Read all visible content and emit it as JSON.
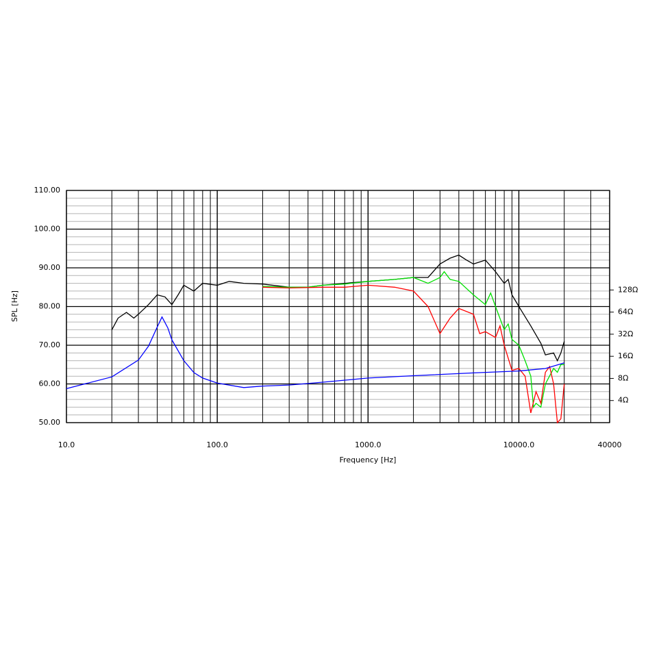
{
  "chart_data": {
    "type": "line",
    "xlabel": "Frequency [Hz]",
    "ylabel": "SPL [Hz]",
    "xlog": true,
    "xlim": [
      10,
      40000
    ],
    "xticks": [
      {
        "value": 10,
        "label": "10.0"
      },
      {
        "value": 100,
        "label": "100.0"
      },
      {
        "value": 1000,
        "label": "1000.0"
      },
      {
        "value": 10000,
        "label": "10000.0"
      },
      40000
    ],
    "xminorticks": [
      20,
      30,
      40,
      50,
      60,
      70,
      80,
      90,
      200,
      300,
      400,
      500,
      600,
      700,
      800,
      900,
      2000,
      3000,
      4000,
      5000,
      6000,
      7000,
      8000,
      9000,
      20000,
      30000
    ],
    "ylim": [
      50,
      110
    ],
    "yticks": [
      {
        "value": 50,
        "label": "50.00"
      },
      {
        "value": 60,
        "label": "60.00"
      },
      {
        "value": 70,
        "label": "70.00"
      },
      {
        "value": 80,
        "label": "80.00"
      },
      {
        "value": 90,
        "label": "90.00"
      },
      {
        "value": 100,
        "label": "100.00"
      },
      {
        "value": 110,
        "label": "110.00"
      }
    ],
    "yminorticks": [
      52,
      54,
      56,
      58,
      62,
      64,
      66,
      68,
      72,
      74,
      76,
      78,
      82,
      84,
      86,
      88,
      92,
      94,
      96,
      98,
      102,
      104,
      106,
      108
    ],
    "y2log": true,
    "y2lim": [
      2,
      2900
    ],
    "y2ticks": [
      {
        "value": 4,
        "label": "4Ω"
      },
      {
        "value": 8,
        "label": "8Ω"
      },
      {
        "value": 16,
        "label": "16Ω"
      },
      {
        "value": 32,
        "label": "32Ω"
      },
      {
        "value": 64,
        "label": "64Ω"
      },
      {
        "value": 128,
        "label": "128Ω"
      }
    ],
    "grid": true,
    "series": [
      {
        "color": "#000000",
        "x": [
          20,
          22,
          25,
          28,
          30,
          35,
          40,
          45,
          50,
          55,
          60,
          70,
          80,
          100,
          120,
          150,
          200,
          300,
          400,
          500,
          700,
          1000,
          1500,
          2000,
          2500,
          3000,
          3500,
          4000,
          4500,
          5000,
          6000,
          7000,
          8000,
          8500,
          9000,
          10000,
          12000,
          14000,
          15000,
          17000,
          18000,
          19000,
          20000
        ],
        "values": [
          74,
          77,
          78.5,
          77,
          78,
          80.5,
          83,
          82.5,
          80.5,
          83,
          85.5,
          84,
          86,
          85.5,
          86.5,
          86,
          85.8,
          85,
          85,
          85.5,
          86,
          86.5,
          87,
          87.5,
          87.5,
          91,
          92.5,
          93.3,
          92,
          91,
          92,
          89,
          86,
          87,
          83,
          80,
          75,
          70.5,
          67.5,
          68,
          66,
          68,
          71
        ]
      },
      {
        "color": "#00e000",
        "x": [
          200,
          300,
          400,
          500,
          700,
          1000,
          1500,
          2000,
          2500,
          3000,
          3200,
          3500,
          4000,
          5000,
          6000,
          6500,
          7000,
          8000,
          8500,
          9000,
          10000,
          11000,
          12000,
          12500,
          13000,
          14000,
          15000,
          17000,
          18000,
          19000,
          20000
        ],
        "values": [
          85.2,
          85,
          85,
          85.5,
          85.8,
          86.5,
          87,
          87.5,
          86,
          87.5,
          89,
          87,
          86.5,
          83,
          80.5,
          83.5,
          80,
          74,
          75.5,
          71.5,
          70,
          66,
          62,
          54,
          55,
          54,
          60,
          64,
          63,
          65,
          65
        ]
      },
      {
        "color": "#ff0000",
        "x": [
          200,
          300,
          500,
          700,
          1000,
          1500,
          2000,
          2500,
          3000,
          3500,
          4000,
          5000,
          5500,
          6000,
          7000,
          7500,
          8000,
          9000,
          10000,
          11000,
          12000,
          13000,
          14000,
          15000,
          16000,
          17000,
          18000,
          19000,
          20000
        ],
        "values": [
          85,
          84.8,
          85,
          85,
          85.5,
          85,
          84,
          80,
          73,
          77,
          79.5,
          78,
          73,
          73.5,
          72,
          75,
          70,
          63.5,
          64,
          62,
          52.5,
          58,
          55,
          63,
          64.5,
          60,
          50,
          51,
          60
        ]
      },
      {
        "color": "#0000ff",
        "axis": "y2",
        "x": [
          10,
          20,
          30,
          35,
          40,
          43,
          47,
          50,
          60,
          70,
          80,
          100,
          150,
          200,
          300,
          500,
          1000,
          2000,
          5000,
          10000,
          15000,
          20000
        ],
        "values": [
          5.8,
          8.4,
          14.2,
          22,
          40,
          55,
          39,
          26.8,
          14,
          9.6,
          8.1,
          6.9,
          6,
          6.3,
          6.5,
          7.1,
          8.1,
          8.7,
          9.5,
          10.1,
          10.9,
          13
        ]
      }
    ]
  }
}
